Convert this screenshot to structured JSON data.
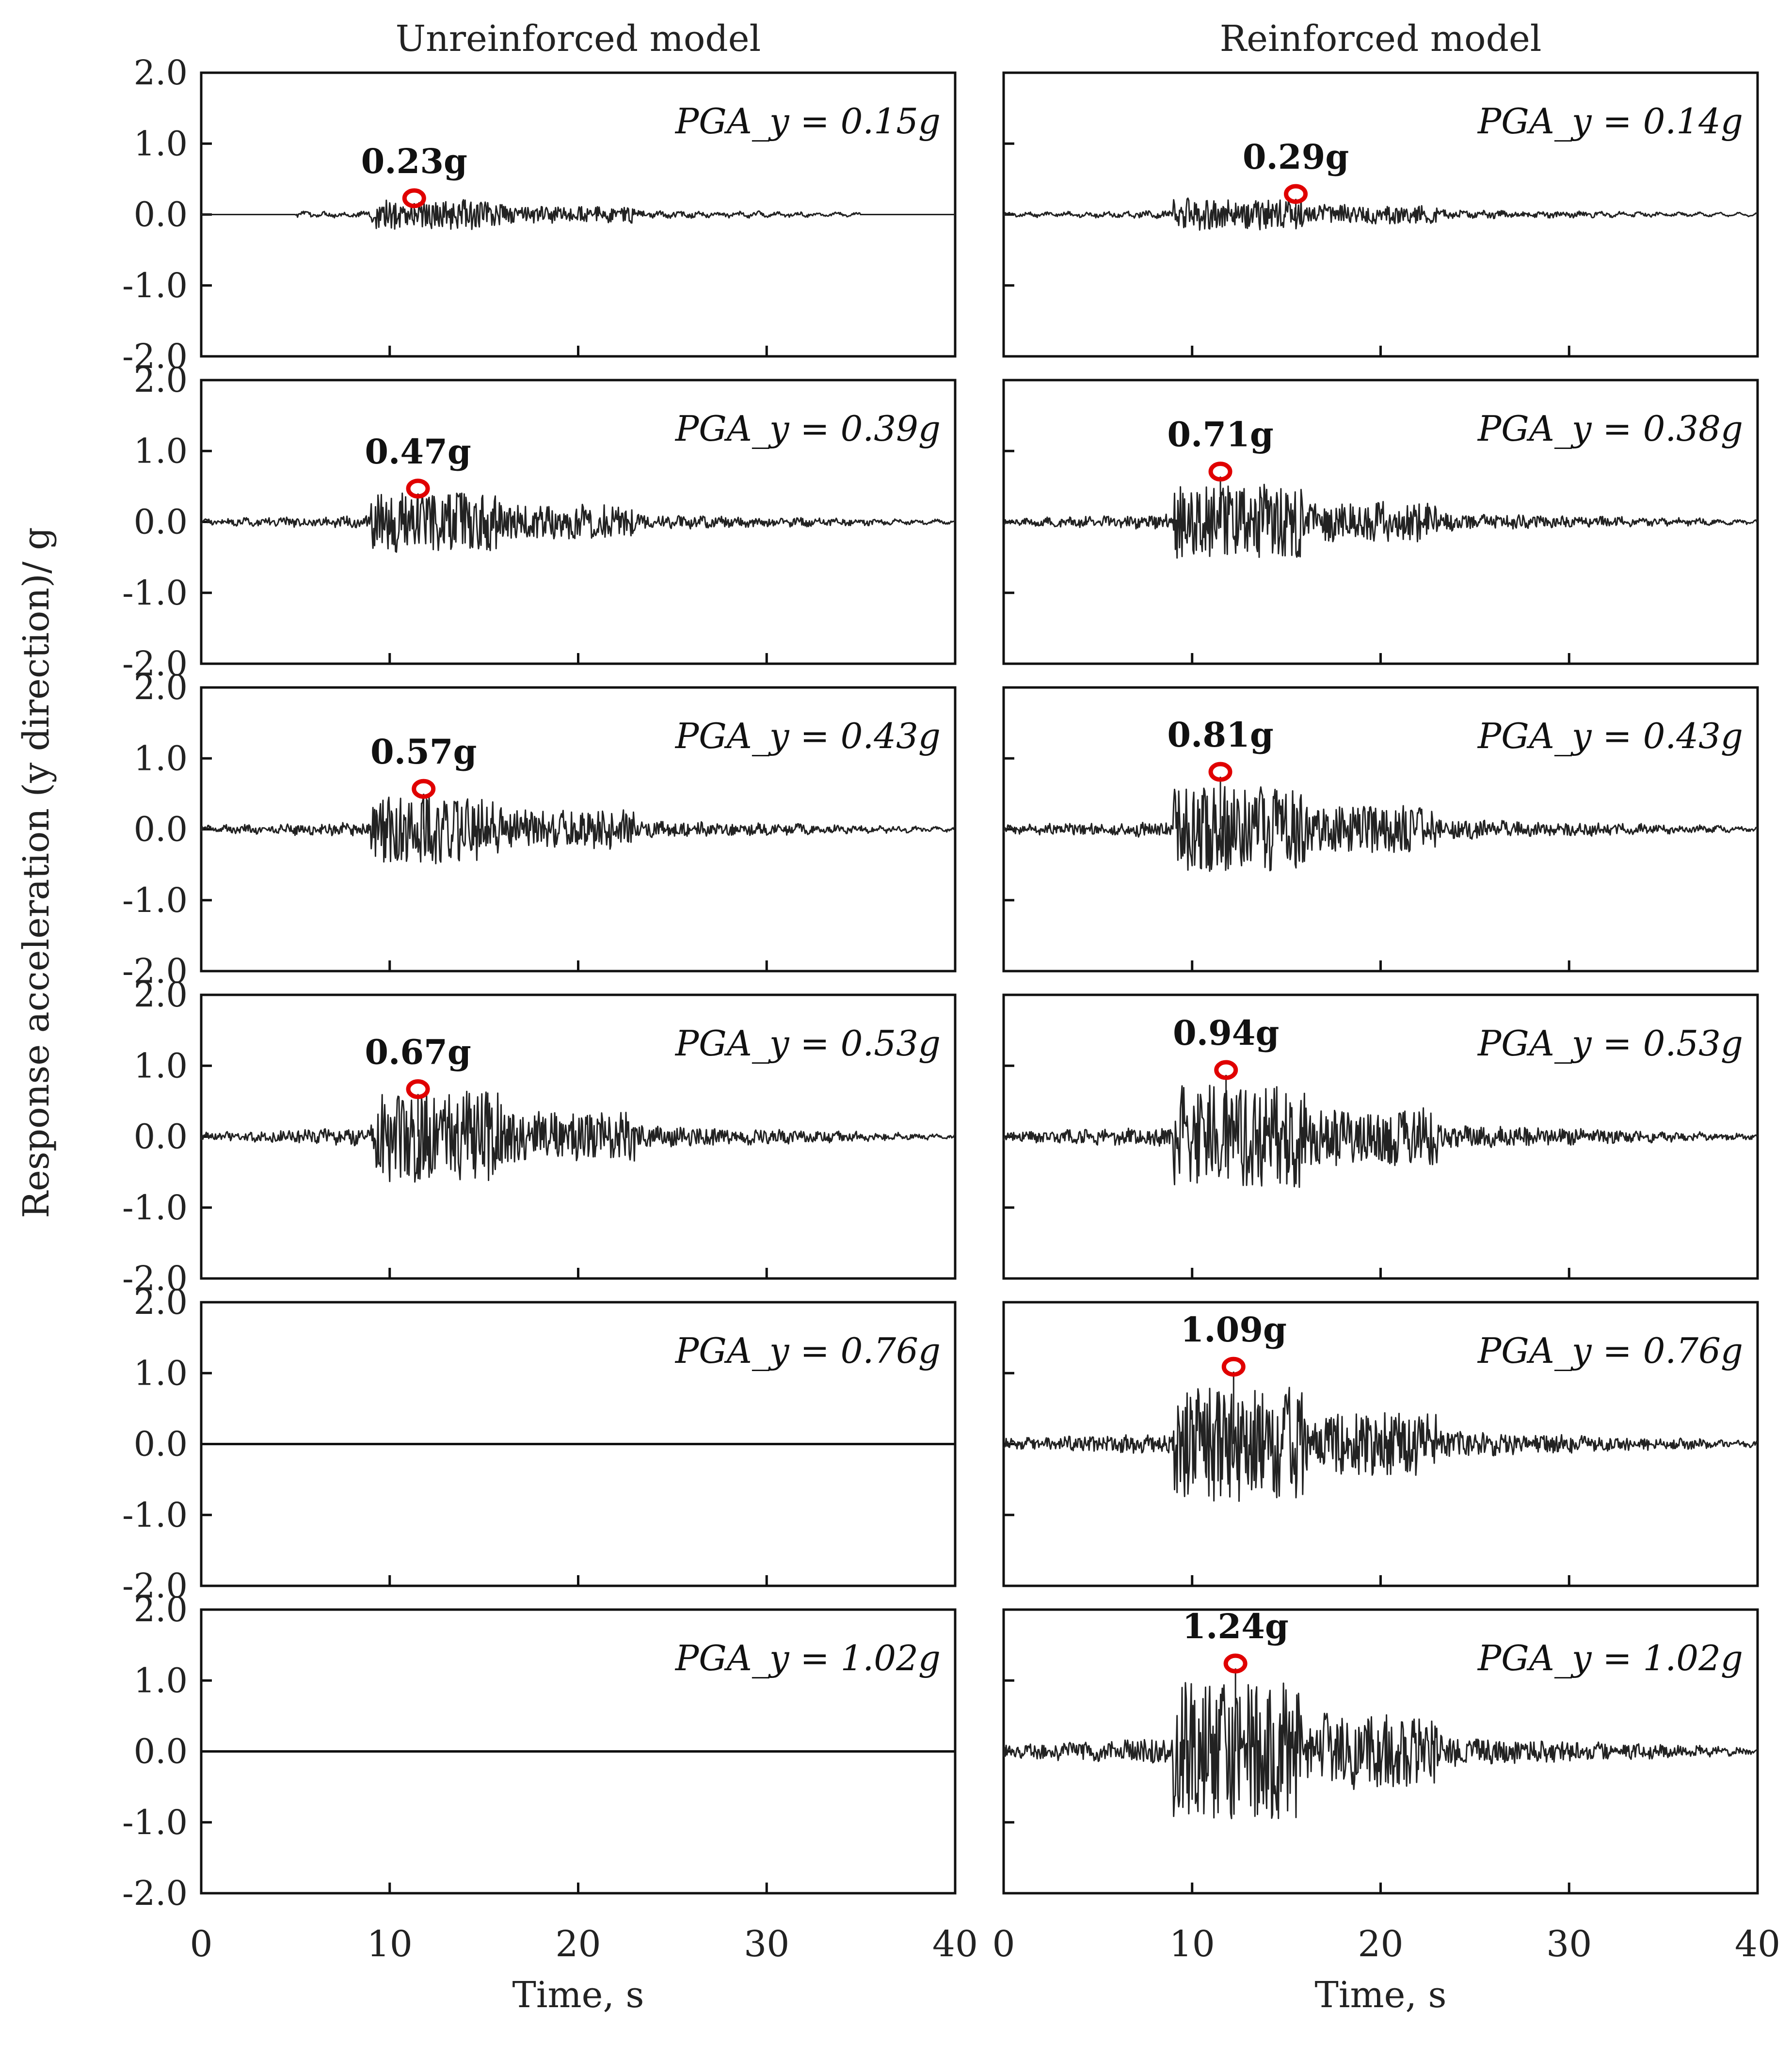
{
  "chart_data": {
    "type": "line",
    "ylabel": "Response acceleration (y direction)/ g",
    "xlabel": "Time, s",
    "xlim": [
      0,
      40
    ],
    "ylim": [
      -2.0,
      2.0
    ],
    "x_ticks": [
      "0",
      "10",
      "20",
      "30",
      "40"
    ],
    "y_ticks": [
      "2.0",
      "1.0",
      "0.0",
      "-1.0",
      "-2.0"
    ],
    "peak_marker_color": "#e00000",
    "columns": [
      {
        "title": "Unreinforced model",
        "panels": [
          {
            "pga_label": "PGA_y = 0.15g",
            "pga": 0.15,
            "peak_label": "0.23g",
            "peak": 0.23,
            "peak_time": 11.3,
            "has_trace": true,
            "start": 5.0,
            "end": 35.0,
            "amp": 0.12
          },
          {
            "pga_label": "PGA_y = 0.39g",
            "pga": 0.39,
            "peak_label": "0.47g",
            "peak": 0.47,
            "peak_time": 11.5,
            "has_trace": true,
            "start": 0.0,
            "end": 40.0,
            "amp": 0.26
          },
          {
            "pga_label": "PGA_y = 0.43g",
            "pga": 0.43,
            "peak_label": "0.57g",
            "peak": 0.57,
            "peak_time": 11.8,
            "has_trace": true,
            "start": 0.0,
            "end": 40.0,
            "amp": 0.3
          },
          {
            "pga_label": "PGA_y = 0.53g",
            "pga": 0.53,
            "peak_label": "0.67g",
            "peak": 0.67,
            "peak_time": 11.5,
            "has_trace": true,
            "start": 0.0,
            "end": 40.0,
            "amp": 0.4
          },
          {
            "pga_label": "PGA_y = 0.76g",
            "pga": 0.76,
            "peak_label": "",
            "peak": null,
            "peak_time": null,
            "has_trace": false,
            "start": 0.0,
            "end": 40.0,
            "amp": 0
          },
          {
            "pga_label": "PGA_y = 1.02g",
            "pga": 1.02,
            "peak_label": "",
            "peak": null,
            "peak_time": null,
            "has_trace": false,
            "start": 0.0,
            "end": 40.0,
            "amp": 0
          }
        ]
      },
      {
        "title": "Reinforced model",
        "panels": [
          {
            "pga_label": "PGA_y = 0.14g",
            "pga": 0.14,
            "peak_label": "0.29g",
            "peak": 0.29,
            "peak_time": 15.5,
            "has_trace": true,
            "start": 0.0,
            "end": 40.0,
            "amp": 0.14
          },
          {
            "pga_label": "PGA_y = 0.38g",
            "pga": 0.38,
            "peak_label": "0.71g",
            "peak": 0.71,
            "peak_time": 11.5,
            "has_trace": true,
            "start": 0.0,
            "end": 40.0,
            "amp": 0.32
          },
          {
            "pga_label": "PGA_y = 0.43g",
            "pga": 0.43,
            "peak_label": "0.81g",
            "peak": 0.81,
            "peak_time": 11.5,
            "has_trace": true,
            "start": 0.0,
            "end": 40.0,
            "amp": 0.38
          },
          {
            "pga_label": "PGA_y = 0.53g",
            "pga": 0.53,
            "peak_label": "0.94g",
            "peak": 0.94,
            "peak_time": 11.8,
            "has_trace": true,
            "start": 0.0,
            "end": 40.0,
            "amp": 0.45
          },
          {
            "pga_label": "PGA_y = 0.76g",
            "pga": 0.76,
            "peak_label": "1.09g",
            "peak": 1.09,
            "peak_time": 12.2,
            "has_trace": true,
            "start": 0.0,
            "end": 40.0,
            "amp": 0.5
          },
          {
            "pga_label": "PGA_y = 1.02g",
            "pga": 1.02,
            "peak_label": "1.24g",
            "peak": 1.24,
            "peak_time": 12.3,
            "has_trace": true,
            "start": 0.0,
            "end": 40.0,
            "amp": 0.6
          }
        ]
      }
    ]
  }
}
